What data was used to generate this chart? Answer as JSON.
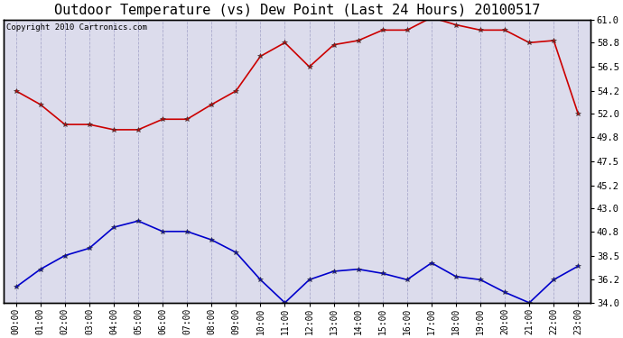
{
  "title": "Outdoor Temperature (vs) Dew Point (Last 24 Hours) 20100517",
  "copyright": "Copyright 2010 Cartronics.com",
  "x_labels": [
    "00:00",
    "01:00",
    "02:00",
    "03:00",
    "04:00",
    "05:00",
    "06:00",
    "07:00",
    "08:00",
    "09:00",
    "10:00",
    "11:00",
    "12:00",
    "13:00",
    "14:00",
    "15:00",
    "16:00",
    "17:00",
    "18:00",
    "19:00",
    "20:00",
    "21:00",
    "22:00",
    "23:00"
  ],
  "temp_data": [
    54.2,
    52.9,
    51.0,
    51.0,
    50.5,
    50.5,
    51.5,
    51.5,
    52.9,
    54.2,
    57.5,
    58.8,
    56.5,
    58.6,
    59.0,
    60.0,
    60.0,
    61.2,
    60.5,
    60.0,
    60.0,
    58.8,
    59.0,
    52.0
  ],
  "dew_data": [
    35.5,
    37.2,
    38.5,
    39.2,
    41.2,
    41.8,
    40.8,
    40.8,
    40.0,
    38.8,
    36.2,
    34.0,
    36.2,
    37.0,
    37.2,
    36.8,
    36.2,
    37.8,
    36.5,
    36.2,
    35.0,
    34.0,
    36.2,
    37.5
  ],
  "temp_color": "#cc0000",
  "dew_color": "#0000cc",
  "bg_color": "#dcdcec",
  "fig_color": "#ffffff",
  "grid_color": "#aaaacc",
  "border_color": "#000000",
  "ylim": [
    34.0,
    61.0
  ],
  "yticks": [
    34.0,
    36.2,
    38.5,
    40.8,
    43.0,
    45.2,
    47.5,
    49.8,
    52.0,
    54.2,
    56.5,
    58.8,
    61.0
  ],
  "title_fontsize": 11,
  "copyright_fontsize": 6.5,
  "tick_fontsize": 7,
  "ytick_fontsize": 7.5
}
